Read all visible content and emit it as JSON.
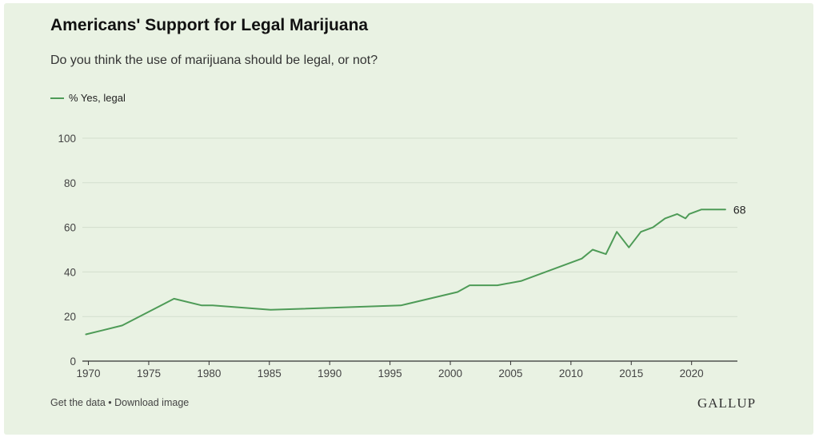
{
  "header": {
    "title": "Americans' Support for Legal Marijuana",
    "subtitle": "Do you think the use of marijuana should be legal, or not?"
  },
  "colors": {
    "background": "#e9f2e3",
    "line": "#4e9b57",
    "grid": "#d3dece",
    "axis": "#333333"
  },
  "chart_data": {
    "type": "line",
    "title": "Americans' Support for Legal Marijuana",
    "subtitle": "Do you think the use of marijuana should be legal, or not?",
    "xlabel": "",
    "ylabel": "",
    "xlim": [
      1969.5,
      2023.8
    ],
    "ylim": [
      0,
      100
    ],
    "x_ticks": [
      1970,
      1975,
      1980,
      1985,
      1990,
      1995,
      2000,
      2005,
      2010,
      2015,
      2020
    ],
    "y_ticks": [
      0,
      20,
      40,
      60,
      80,
      100
    ],
    "grid": "horizontal",
    "legend": "top-left",
    "series": [
      {
        "name": "% Yes, legal",
        "end_label": "68",
        "points": [
          [
            1969.8,
            12
          ],
          [
            1972.8,
            16
          ],
          [
            1977.1,
            28
          ],
          [
            1979.4,
            25
          ],
          [
            1980.3,
            25
          ],
          [
            1985.1,
            23
          ],
          [
            1995.9,
            25
          ],
          [
            2000.6,
            31
          ],
          [
            2001.6,
            34
          ],
          [
            2003.9,
            34
          ],
          [
            2005.9,
            36
          ],
          [
            2010.9,
            46
          ],
          [
            2011.8,
            50
          ],
          [
            2012.9,
            48
          ],
          [
            2013.8,
            58
          ],
          [
            2014.8,
            51
          ],
          [
            2015.8,
            58
          ],
          [
            2016.8,
            60
          ],
          [
            2017.8,
            64
          ],
          [
            2018.8,
            66
          ],
          [
            2019.5,
            64
          ],
          [
            2019.8,
            66
          ],
          [
            2020.8,
            68
          ],
          [
            2021.8,
            68
          ],
          [
            2022.8,
            68
          ]
        ]
      }
    ]
  },
  "footer": {
    "links": "Get the data • Download image",
    "brand": "GALLUP"
  }
}
